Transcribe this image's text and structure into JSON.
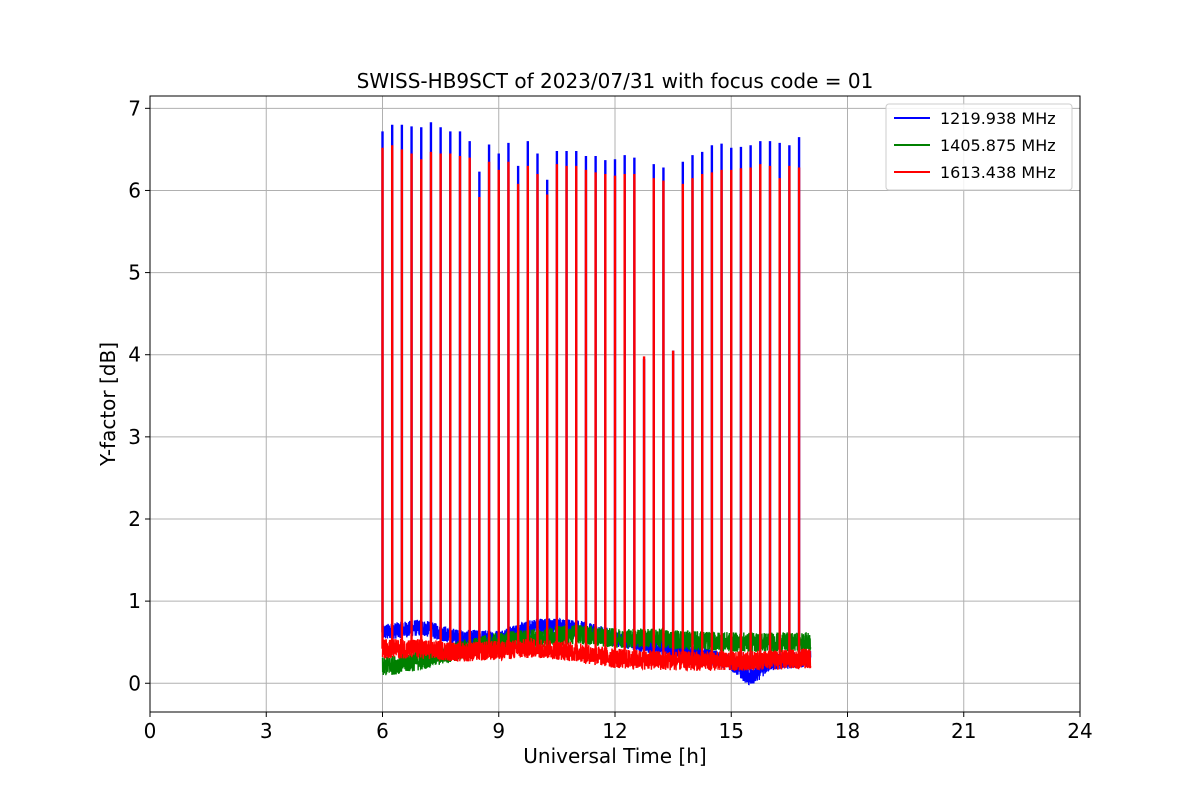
{
  "chart_data": {
    "type": "line",
    "title": "SWISS-HB9SCT of 2023/07/31 with focus code = 01",
    "xlabel": "Universal Time [h]",
    "ylabel": "Y-factor [dB]",
    "xlim": [
      0,
      24
    ],
    "ylim": [
      -0.35,
      7.15
    ],
    "xticks": [
      0,
      3,
      6,
      9,
      12,
      15,
      18,
      21,
      24
    ],
    "yticks": [
      0,
      1,
      2,
      3,
      4,
      5,
      6,
      7
    ],
    "grid": true,
    "legend_position": "top-right",
    "data_range_x": [
      6.0,
      17.05
    ],
    "series": [
      {
        "name": "1219.938 MHz",
        "color": "#0000ff",
        "baseline": [
          [
            6.0,
            0.62
          ],
          [
            7.0,
            0.68
          ],
          [
            8.0,
            0.55
          ],
          [
            9.0,
            0.55
          ],
          [
            10.0,
            0.7
          ],
          [
            11.0,
            0.68
          ],
          [
            12.0,
            0.55
          ],
          [
            13.0,
            0.45
          ],
          [
            14.0,
            0.38
          ],
          [
            15.0,
            0.25
          ],
          [
            15.5,
            0.05
          ],
          [
            16.0,
            0.25
          ],
          [
            17.0,
            0.3
          ]
        ],
        "noise": 0.1,
        "peaks": [
          [
            6.0,
            6.72
          ],
          [
            6.25,
            6.8
          ],
          [
            6.5,
            6.8
          ],
          [
            6.75,
            6.78
          ],
          [
            7.0,
            6.77
          ],
          [
            7.25,
            6.83
          ],
          [
            7.5,
            6.77
          ],
          [
            7.75,
            6.72
          ],
          [
            8.0,
            6.72
          ],
          [
            8.25,
            6.6
          ],
          [
            8.5,
            6.23
          ],
          [
            8.75,
            6.56
          ],
          [
            9.0,
            6.45
          ],
          [
            9.25,
            6.58
          ],
          [
            9.5,
            6.3
          ],
          [
            9.75,
            6.6
          ],
          [
            10.0,
            6.45
          ],
          [
            10.25,
            6.13
          ],
          [
            10.5,
            6.48
          ],
          [
            10.75,
            6.48
          ],
          [
            11.0,
            6.48
          ],
          [
            11.25,
            6.42
          ],
          [
            11.5,
            6.42
          ],
          [
            11.75,
            6.37
          ],
          [
            12.0,
            6.38
          ],
          [
            12.25,
            6.43
          ],
          [
            12.5,
            6.4
          ],
          [
            12.75,
            3.95
          ],
          [
            13.0,
            6.32
          ],
          [
            13.25,
            6.28
          ],
          [
            13.5,
            4.05
          ],
          [
            13.75,
            6.35
          ],
          [
            14.0,
            6.43
          ],
          [
            14.25,
            6.47
          ],
          [
            14.5,
            6.55
          ],
          [
            14.75,
            6.57
          ],
          [
            15.0,
            6.52
          ],
          [
            15.25,
            6.53
          ],
          [
            15.5,
            6.55
          ],
          [
            15.75,
            6.6
          ],
          [
            16.0,
            6.6
          ],
          [
            16.25,
            6.58
          ],
          [
            16.5,
            6.55
          ],
          [
            16.75,
            6.65
          ]
        ]
      },
      {
        "name": "1405.875 MHz",
        "color": "#008000",
        "baseline": [
          [
            6.0,
            0.2
          ],
          [
            7.0,
            0.28
          ],
          [
            8.0,
            0.4
          ],
          [
            9.0,
            0.5
          ],
          [
            10.0,
            0.55
          ],
          [
            11.0,
            0.6
          ],
          [
            12.0,
            0.55
          ],
          [
            13.0,
            0.55
          ],
          [
            14.0,
            0.52
          ],
          [
            15.0,
            0.5
          ],
          [
            16.0,
            0.5
          ],
          [
            17.0,
            0.5
          ]
        ],
        "noise": 0.12,
        "peaks": []
      },
      {
        "name": "1613.438 MHz",
        "color": "#ff0000",
        "baseline": [
          [
            6.0,
            0.42
          ],
          [
            7.0,
            0.42
          ],
          [
            8.0,
            0.38
          ],
          [
            9.0,
            0.4
          ],
          [
            10.0,
            0.43
          ],
          [
            11.0,
            0.38
          ],
          [
            12.0,
            0.3
          ],
          [
            13.0,
            0.28
          ],
          [
            14.0,
            0.27
          ],
          [
            15.0,
            0.27
          ],
          [
            16.0,
            0.28
          ],
          [
            17.0,
            0.3
          ]
        ],
        "noise": 0.12,
        "peaks": [
          [
            6.0,
            6.52
          ],
          [
            6.25,
            6.55
          ],
          [
            6.5,
            6.5
          ],
          [
            6.75,
            6.45
          ],
          [
            7.0,
            6.38
          ],
          [
            7.25,
            6.47
          ],
          [
            7.5,
            6.45
          ],
          [
            7.75,
            6.45
          ],
          [
            8.0,
            6.42
          ],
          [
            8.25,
            6.4
          ],
          [
            8.5,
            5.92
          ],
          [
            8.75,
            6.35
          ],
          [
            9.0,
            6.25
          ],
          [
            9.25,
            6.35
          ],
          [
            9.5,
            6.08
          ],
          [
            9.75,
            6.3
          ],
          [
            10.0,
            6.2
          ],
          [
            10.25,
            5.95
          ],
          [
            10.5,
            6.32
          ],
          [
            10.75,
            6.3
          ],
          [
            11.0,
            6.3
          ],
          [
            11.25,
            6.25
          ],
          [
            11.5,
            6.22
          ],
          [
            11.75,
            6.2
          ],
          [
            12.0,
            6.18
          ],
          [
            12.25,
            6.2
          ],
          [
            12.5,
            6.2
          ],
          [
            12.75,
            3.98
          ],
          [
            13.0,
            6.15
          ],
          [
            13.25,
            6.12
          ],
          [
            13.5,
            4.05
          ],
          [
            13.75,
            6.08
          ],
          [
            14.0,
            6.15
          ],
          [
            14.25,
            6.2
          ],
          [
            14.5,
            6.22
          ],
          [
            14.75,
            6.25
          ],
          [
            15.0,
            6.25
          ],
          [
            15.25,
            6.27
          ],
          [
            15.5,
            6.28
          ],
          [
            15.75,
            6.32
          ],
          [
            16.0,
            6.3
          ],
          [
            16.25,
            6.15
          ],
          [
            16.5,
            6.3
          ],
          [
            16.75,
            6.28
          ]
        ]
      }
    ]
  }
}
